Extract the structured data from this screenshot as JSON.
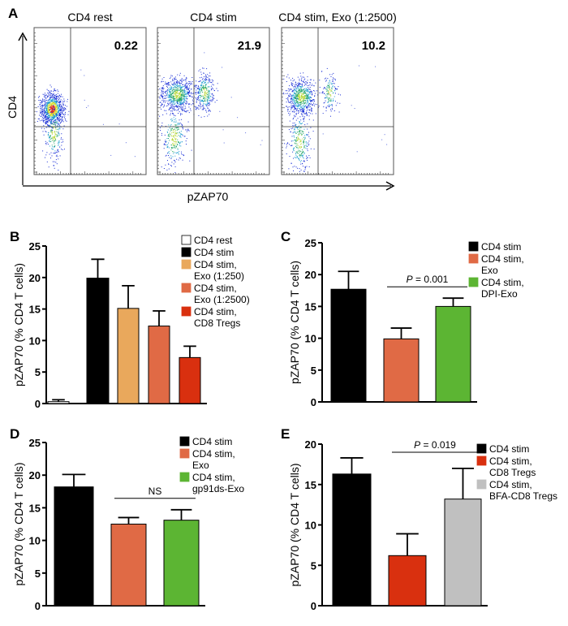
{
  "chart_data": [
    {
      "panel": "A",
      "type": "scatter",
      "xlabel": "pZAP70",
      "ylabel": "CD4",
      "plots": [
        {
          "title": "CD4 rest",
          "quadrant_value": "0.22"
        },
        {
          "title": "CD4 stim",
          "quadrant_value": "21.9"
        },
        {
          "title": "CD4 stim, Exo (1:2500)",
          "quadrant_value": "10.2"
        }
      ],
      "axis_scale": "log"
    },
    {
      "panel": "B",
      "type": "bar",
      "ylabel": "pZAP70 (% CD4 T cells)",
      "ylim": [
        0,
        25
      ],
      "yticks": [
        "0",
        "5",
        "10",
        "15",
        "20",
        "25"
      ],
      "categories": [
        "CD4 rest",
        "CD4 stim",
        "CD4 stim, Exo (1:250)",
        "CD4 stim, Exo (1:2500)",
        "CD4 stim, CD8 Tregs"
      ],
      "legend": [
        [
          "CD4 rest"
        ],
        [
          "CD4 stim"
        ],
        [
          "CD4 stim,",
          "Exo (1:250)"
        ],
        [
          "CD4 stim,",
          "Exo (1:2500)"
        ],
        [
          "CD4 stim,",
          "CD8 Tregs"
        ]
      ],
      "values": [
        0.3,
        19.9,
        15.1,
        12.3,
        7.3
      ],
      "errors": [
        0.3,
        3.0,
        3.6,
        2.4,
        1.8
      ],
      "colors": [
        "#ffffff",
        "#000000",
        "#e9a85c",
        "#e06a45",
        "#d9300f"
      ],
      "legend_position": "top-right"
    },
    {
      "panel": "C",
      "type": "bar",
      "ylabel": "pZAP70 (% CD4 T cells)",
      "ylim": [
        0,
        25
      ],
      "yticks": [
        "0",
        "5",
        "10",
        "15",
        "20",
        "25"
      ],
      "categories": [
        "CD4 stim",
        "CD4 stim, Exo",
        "CD4 stim, DPI-Exo"
      ],
      "legend": [
        [
          "CD4 stim"
        ],
        [
          "CD4 stim,",
          "Exo"
        ],
        [
          "CD4 stim,",
          "DPI-Exo"
        ]
      ],
      "values": [
        17.7,
        9.9,
        15.0
      ],
      "errors": [
        2.8,
        1.7,
        1.3
      ],
      "colors": [
        "#000000",
        "#e06a45",
        "#5cb533"
      ],
      "significance": {
        "between": [
          1,
          2
        ],
        "label_italic": "P",
        "label": " = 0.001"
      },
      "legend_position": "top-right"
    },
    {
      "panel": "D",
      "type": "bar",
      "ylabel": "pZAP70 (% CD4 T cells)",
      "ylim": [
        0,
        25
      ],
      "yticks": [
        "0",
        "5",
        "10",
        "15",
        "20",
        "25"
      ],
      "categories": [
        "CD4 stim",
        "CD4 stim, Exo",
        "CD4 stim, gp91ds-Exo"
      ],
      "legend": [
        [
          "CD4 stim"
        ],
        [
          "CD4 stim,",
          "Exo"
        ],
        [
          "CD4 stim,",
          "gp91ds-Exo"
        ]
      ],
      "values": [
        18.2,
        12.5,
        13.1
      ],
      "errors": [
        1.9,
        1.0,
        1.6
      ],
      "colors": [
        "#000000",
        "#e06a45",
        "#5cb533"
      ],
      "significance": {
        "between": [
          1,
          2
        ],
        "label_italic": "",
        "label": "NS"
      },
      "legend_position": "top-right"
    },
    {
      "panel": "E",
      "type": "bar",
      "ylabel": "pZAP70 (% CD4 T cells)",
      "ylim": [
        0,
        20
      ],
      "yticks": [
        "0",
        "5",
        "10",
        "15",
        "20"
      ],
      "categories": [
        "CD4 stim",
        "CD4 stim, CD8 Tregs",
        "CD4 stim, BFA-CD8 Tregs"
      ],
      "legend": [
        [
          "CD4 stim"
        ],
        [
          "CD4 stim,",
          "CD8 Tregs"
        ],
        [
          "CD4 stim,",
          "BFA-CD8 Tregs"
        ]
      ],
      "values": [
        16.3,
        6.2,
        13.2
      ],
      "errors": [
        2.0,
        2.7,
        3.8
      ],
      "colors": [
        "#000000",
        "#d9300f",
        "#c0c0c0"
      ],
      "significance": {
        "between": [
          1,
          2
        ],
        "label_italic": "P",
        "label": " = 0.019"
      },
      "legend_position": "top-right"
    }
  ]
}
